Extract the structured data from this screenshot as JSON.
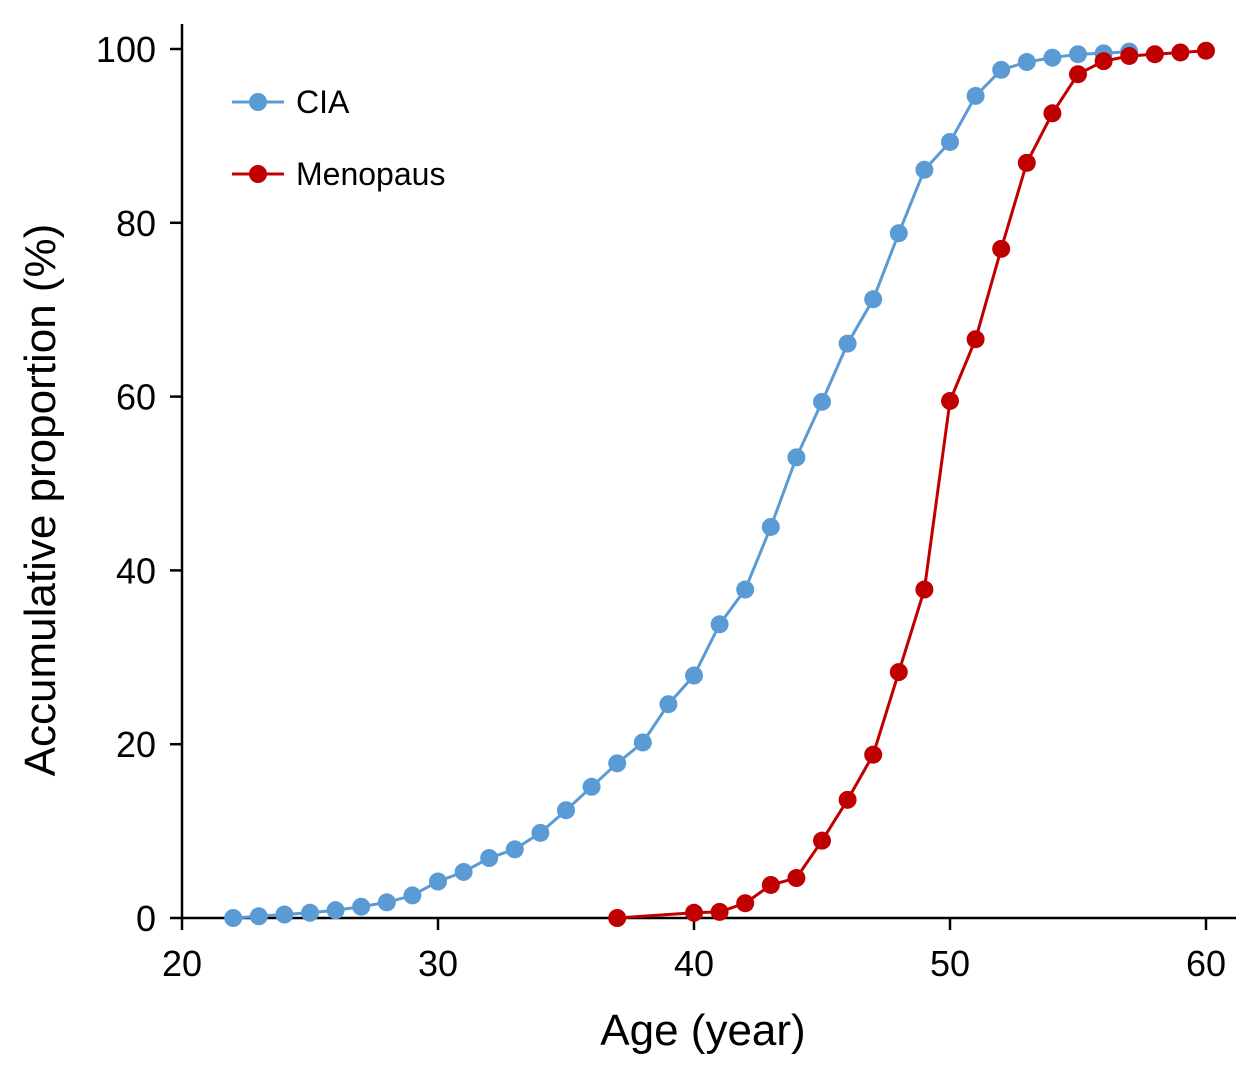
{
  "chart_data": {
    "type": "line",
    "title": "",
    "xlabel": "Age (year)",
    "ylabel": "Accumulative proportion (%)",
    "xlim": [
      20,
      61
    ],
    "ylim": [
      0,
      100
    ],
    "xticks": [
      20,
      30,
      40,
      50,
      60
    ],
    "yticks": [
      0,
      20,
      40,
      60,
      80,
      100
    ],
    "grid": false,
    "legend_position": "top-left",
    "series": [
      {
        "name": "CIA",
        "color": "#5b9bd5",
        "x": [
          22,
          23,
          24,
          25,
          26,
          27,
          28,
          29,
          30,
          31,
          32,
          33,
          34,
          35,
          36,
          37,
          38,
          39,
          40,
          41,
          42,
          43,
          44,
          45,
          46,
          47,
          48,
          49,
          50,
          51,
          52,
          53,
          54,
          55,
          56,
          57
        ],
        "y": [
          0,
          0.2,
          0.4,
          0.6,
          0.9,
          1.3,
          1.8,
          2.6,
          4.2,
          5.3,
          6.9,
          7.9,
          9.8,
          12.4,
          15.1,
          17.8,
          20.2,
          24.6,
          27.9,
          33.8,
          37.8,
          45.0,
          53.0,
          59.4,
          66.1,
          71.2,
          78.8,
          86.1,
          89.3,
          94.6,
          97.6,
          98.5,
          99.0,
          99.4,
          99.5,
          99.7
        ]
      },
      {
        "name": "Menopaus",
        "color": "#c00000",
        "x": [
          37,
          40,
          41,
          42,
          43,
          44,
          45,
          46,
          47,
          48,
          49,
          50,
          51,
          52,
          53,
          54,
          55,
          56,
          57,
          58,
          59,
          60
        ],
        "y": [
          0,
          0.6,
          0.7,
          1.7,
          3.8,
          4.6,
          8.9,
          13.6,
          18.8,
          28.3,
          37.8,
          59.5,
          66.6,
          77.0,
          86.9,
          92.6,
          97.1,
          98.6,
          99.2,
          99.4,
          99.6,
          99.8
        ]
      }
    ]
  }
}
